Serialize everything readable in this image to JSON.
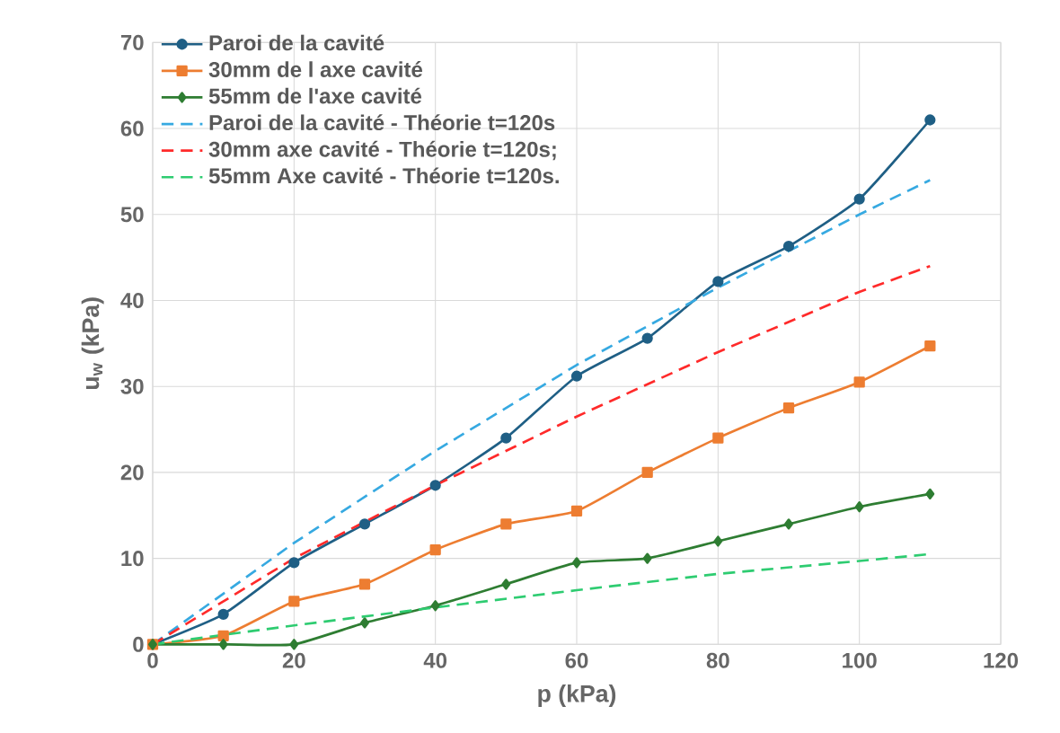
{
  "chart_data": {
    "type": "line",
    "xlabel": "p (kPa)",
    "ylabel": "u$_{w}$ (kPa)",
    "xlim": [
      0,
      120
    ],
    "ylim": [
      0,
      70
    ],
    "xticks": [
      0,
      20,
      40,
      60,
      80,
      100,
      120
    ],
    "yticks": [
      0,
      10,
      20,
      30,
      40,
      50,
      60,
      70
    ],
    "grid": true,
    "legend": "top left",
    "series": [
      {
        "name": "Paroi de la cavité",
        "color": "#1f5f85",
        "marker": "circle",
        "line_style": "solid",
        "x": [
          0,
          10,
          20,
          30,
          40,
          50,
          60,
          70,
          80,
          90,
          100,
          110
        ],
        "values": [
          0,
          3.5,
          9.5,
          14,
          18.5,
          24,
          31.2,
          35.6,
          42.2,
          46.3,
          51.8,
          61
        ]
      },
      {
        "name": "30mm de l axe cavité",
        "color": "#ed7d31",
        "marker": "square",
        "line_style": "solid",
        "x": [
          0,
          10,
          20,
          30,
          40,
          50,
          60,
          70,
          80,
          90,
          100,
          110
        ],
        "values": [
          0,
          1,
          5,
          7,
          11,
          14,
          15.5,
          20,
          24,
          27.5,
          30.5,
          34.7
        ]
      },
      {
        "name": "55mm de l'axe cavité",
        "color": "#2e7d32",
        "marker": "diamond",
        "line_style": "solid",
        "x": [
          0,
          10,
          20,
          30,
          40,
          50,
          60,
          70,
          80,
          90,
          100,
          110
        ],
        "values": [
          0,
          0,
          0,
          2.5,
          4.5,
          7,
          9.5,
          10,
          12,
          14,
          16,
          17.5
        ]
      },
      {
        "name": "Paroi de la cavité - Théorie t=120s",
        "color": "#36a9e1",
        "marker": "none",
        "line_style": "dashed",
        "x": [
          0,
          20,
          40,
          60,
          80,
          100,
          110
        ],
        "values": [
          0,
          11.8,
          22.5,
          32.5,
          41.5,
          50,
          54
        ]
      },
      {
        "name": "30mm axe cavité - Théorie t=120s;",
        "color": "#ff2a2a",
        "marker": "none",
        "line_style": "dashed",
        "x": [
          0,
          20,
          40,
          60,
          80,
          100,
          110
        ],
        "values": [
          0,
          10,
          18.5,
          26.5,
          34,
          41,
          44
        ]
      },
      {
        "name": "55mm Axe cavité - Théorie t=120s.",
        "color": "#2ecc71",
        "marker": "none",
        "line_style": "dashed",
        "x": [
          0,
          20,
          40,
          60,
          80,
          100,
          110
        ],
        "values": [
          0,
          2.2,
          4.3,
          6.3,
          8.2,
          9.7,
          10.5
        ]
      }
    ]
  }
}
